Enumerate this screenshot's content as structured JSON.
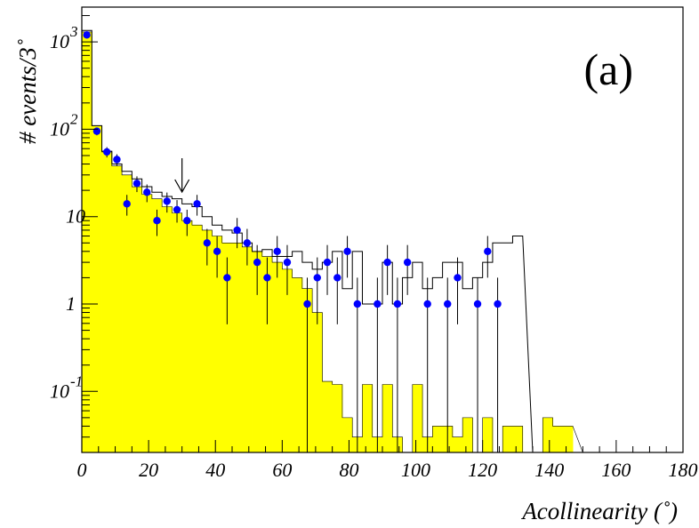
{
  "chart_data": {
    "type": "histogram",
    "title": "",
    "panel_label": "(a)",
    "xlabel": "Acollinearity (˚)",
    "ylabel": "# events/3˚",
    "xlim": [
      0,
      180
    ],
    "ylim": [
      0.02,
      2500
    ],
    "yscale": "log",
    "bin_width": 3,
    "grid": false,
    "legend": "none",
    "x_ticks": [
      0,
      20,
      40,
      60,
      80,
      100,
      120,
      140,
      160,
      180
    ],
    "x_tick_labels": [
      "0",
      "20",
      "40",
      "60",
      "80",
      "100",
      "120",
      "140",
      "160",
      "180"
    ],
    "y_ticks": [
      {
        "value": 0.1,
        "base": "10",
        "exp": "-1"
      },
      {
        "value": 1,
        "base": "1",
        "exp": ""
      },
      {
        "value": 10,
        "base": "10",
        "exp": ""
      },
      {
        "value": 100,
        "base": "10",
        "exp": "2"
      },
      {
        "value": 1000,
        "base": "10",
        "exp": "3"
      }
    ],
    "arrow_at_x": 30,
    "colors": {
      "filled_histogram": "#ffff00",
      "data_points": "#0000ff",
      "outline": "#000000"
    },
    "series": [
      {
        "kind": "filled",
        "bin_edges": [
          0,
          3,
          6,
          9,
          12,
          15,
          18,
          21,
          24,
          27,
          30,
          33,
          36,
          39,
          42,
          45,
          48,
          51,
          54,
          57,
          60,
          63,
          66,
          69,
          72,
          75,
          78,
          81,
          84,
          87,
          90,
          93,
          96,
          99,
          102,
          105,
          108,
          111,
          114,
          117,
          120,
          123,
          126,
          129,
          132,
          135,
          138,
          141,
          144,
          147
        ],
        "values": [
          1300,
          110,
          55,
          38,
          30,
          22,
          18,
          16,
          13,
          11,
          9,
          8,
          7,
          6,
          5,
          5,
          4.5,
          4,
          3.5,
          3,
          2.5,
          2,
          1.5,
          0.8,
          0.13,
          0.12,
          0.05,
          0.03,
          0.12,
          0.03,
          0.12,
          0.03,
          0.02,
          0.12,
          0.03,
          0.04,
          0.04,
          0.03,
          0.05,
          0.02,
          0.05,
          0.02,
          0.04,
          0.04,
          0.02,
          0.02,
          0.05,
          0.04,
          0.04
        ]
      },
      {
        "kind": "outline",
        "bin_edges": [
          0,
          3,
          6,
          9,
          12,
          15,
          18,
          21,
          24,
          27,
          30,
          33,
          36,
          39,
          42,
          45,
          48,
          51,
          54,
          57,
          60,
          63,
          66,
          69,
          72,
          75,
          78,
          81,
          84,
          87,
          90,
          93,
          96,
          99,
          102,
          105,
          108,
          111,
          114,
          117,
          120,
          123,
          126,
          129,
          132
        ],
        "values": [
          1350,
          110,
          56,
          40,
          33,
          27,
          22,
          19,
          17,
          16,
          14,
          13,
          10,
          8,
          7,
          6.5,
          5,
          4,
          4.2,
          3.5,
          3.5,
          4,
          3,
          2.5,
          3,
          4,
          1.5,
          4,
          1,
          1,
          3,
          1,
          2,
          3,
          1.5,
          2,
          3,
          3,
          1.5,
          2,
          3,
          5,
          5,
          6
        ]
      },
      {
        "kind": "points",
        "x": [
          1.5,
          4.5,
          7.5,
          10.5,
          13.5,
          16.5,
          19.5,
          22.5,
          25.5,
          28.5,
          31.5,
          34.5,
          37.5,
          40.5,
          43.5,
          46.5,
          49.5,
          52.5,
          55.5,
          58.5,
          61.5,
          67.5,
          70.5,
          73.5,
          76.5,
          79.5,
          82.5,
          88.5,
          91.5,
          94.5,
          97.5,
          103.5,
          109.5,
          112.5,
          118.5,
          121.5,
          124.5
        ],
        "y": [
          1200,
          95,
          55,
          45,
          14,
          24,
          19,
          9,
          15,
          12,
          9,
          14,
          5,
          4,
          2,
          7,
          5,
          3,
          2,
          4,
          3,
          1,
          2,
          3,
          2,
          4,
          1,
          1,
          3,
          1,
          3,
          1,
          1,
          2,
          1,
          4,
          1
        ]
      }
    ]
  }
}
